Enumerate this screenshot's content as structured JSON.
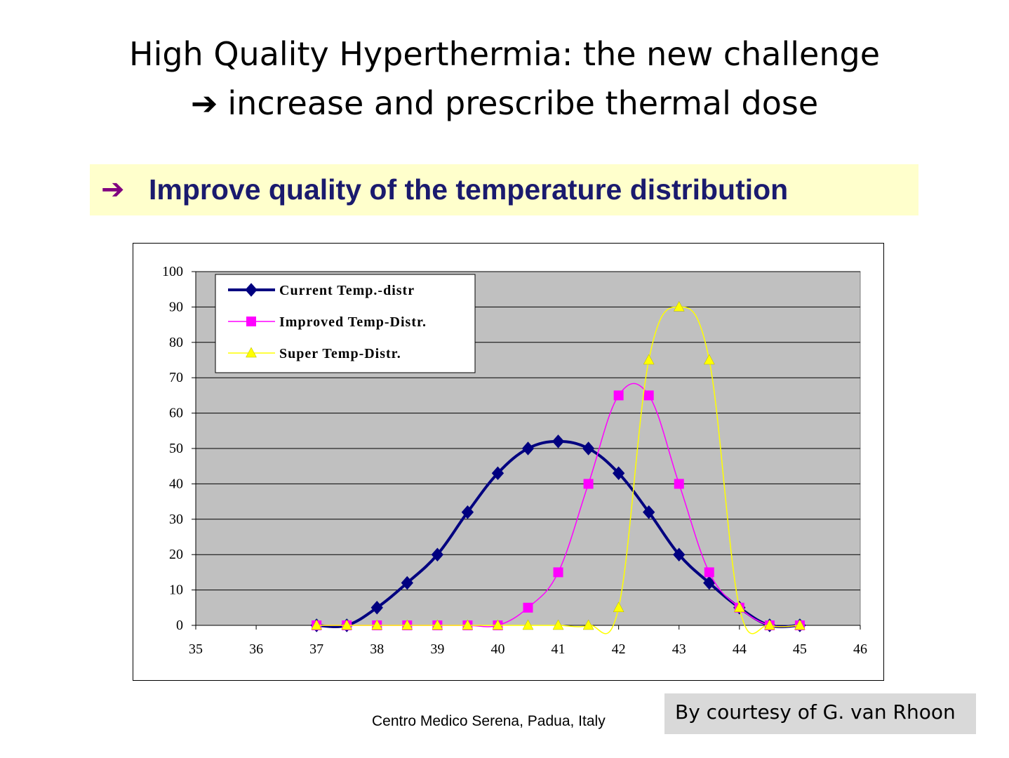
{
  "slide": {
    "title_line1": "High Quality Hyperthermia: the new challenge",
    "title_line2_arrow": "➔",
    "title_line2": "increase and prescribe thermal dose",
    "banner_arrow": "➔",
    "banner_text": "Improve quality of the temperature distribution",
    "banner_arrow_color": "#800080",
    "banner_text_color": "#1a1a6e",
    "banner_bg_color": "#ffffcc",
    "source": "Centro Medico Serena, Padua, Italy",
    "courtesy": "By courtesy of G. van Rhoon"
  },
  "chart_data": {
    "type": "line",
    "title": "",
    "xlabel": "",
    "ylabel": "",
    "xlim": [
      35,
      46
    ],
    "ylim": [
      0,
      100
    ],
    "x_ticks": [
      35,
      36,
      37,
      38,
      39,
      40,
      41,
      42,
      43,
      44,
      45,
      46
    ],
    "y_ticks": [
      0,
      10,
      20,
      30,
      40,
      50,
      60,
      70,
      80,
      90,
      100
    ],
    "grid": true,
    "plot_background": "#c0c0c0",
    "legend_position": "top-left",
    "series": [
      {
        "name": "Current Temp.-distr",
        "color": "#000080",
        "marker": "diamond",
        "x": [
          37,
          37.5,
          38,
          38.5,
          39,
          39.5,
          40,
          40.5,
          41,
          41.5,
          42,
          42.5,
          43,
          43.5,
          44,
          44.5,
          45
        ],
        "y": [
          0,
          0,
          5,
          12,
          20,
          32,
          43,
          50,
          52,
          50,
          43,
          32,
          20,
          12,
          5,
          0,
          0
        ]
      },
      {
        "name": "Improved Temp-Distr.",
        "color": "#ff00ff",
        "marker": "square",
        "x": [
          37,
          37.5,
          38,
          38.5,
          39,
          39.5,
          40,
          40.5,
          41,
          41.5,
          42,
          42.5,
          43,
          43.5,
          44,
          44.5,
          45
        ],
        "y": [
          0,
          0,
          0,
          0,
          0,
          0,
          0,
          5,
          15,
          40,
          65,
          65,
          40,
          15,
          5,
          0,
          0
        ]
      },
      {
        "name": "Super Temp-Distr.",
        "color": "#ffff00",
        "marker": "triangle",
        "x": [
          37,
          37.5,
          38,
          38.5,
          39,
          39.5,
          40,
          40.5,
          41,
          41.5,
          42,
          42.5,
          43,
          43.5,
          44,
          44.5,
          45
        ],
        "y": [
          0,
          0,
          0,
          0,
          0,
          0,
          0,
          0,
          0,
          0,
          5,
          75,
          90,
          75,
          5,
          0,
          0
        ]
      }
    ]
  }
}
